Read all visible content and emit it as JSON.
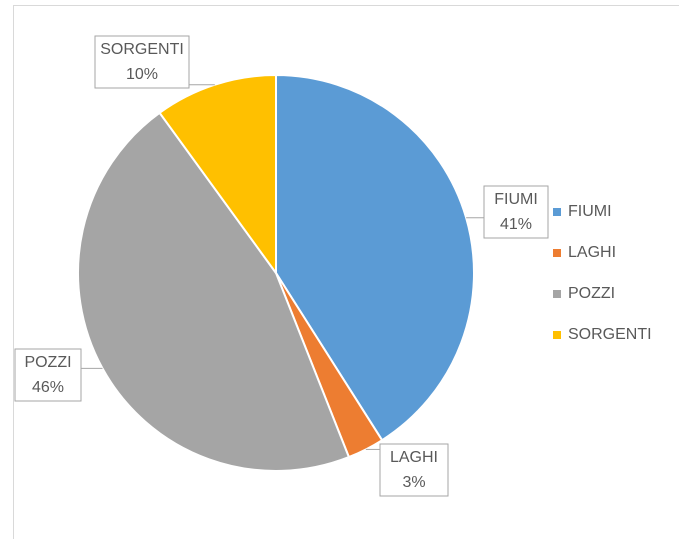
{
  "chart_data": {
    "type": "pie",
    "categories": [
      "FIUMI",
      "LAGHI",
      "POZZI",
      "SORGENTI"
    ],
    "values": [
      41,
      3,
      46,
      10
    ],
    "value_labels": [
      "41%",
      "3%",
      "46%",
      "10%"
    ],
    "colors": [
      "#5b9bd5",
      "#ed7d31",
      "#a5a5a5",
      "#ffc000"
    ],
    "legend": "right"
  }
}
